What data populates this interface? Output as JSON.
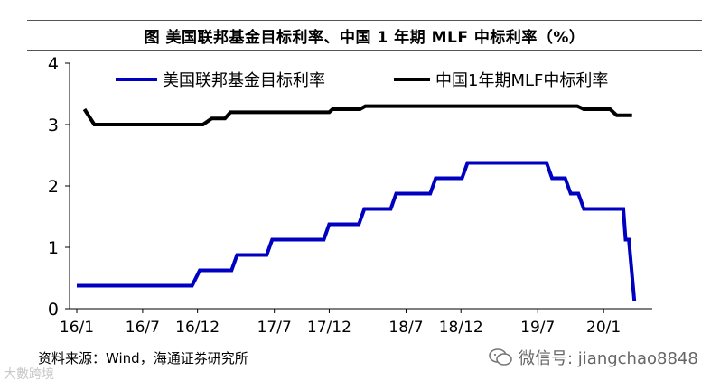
{
  "title": "图 美国联邦基金目标利率、中国 1 年期 MLF 中标利率（%）",
  "source": "资料来源：Wind，海通证券研究所",
  "watermark": {
    "brand": "大數跨境",
    "wechat": "微信号: jiangchao8848"
  },
  "colors": {
    "us_line": "#0000c0",
    "cn_line": "#000000"
  },
  "chart_data": {
    "type": "line",
    "xlabel": "",
    "ylabel": "",
    "ylim": [
      0,
      4
    ],
    "yticks": [
      "0",
      "1",
      "2",
      "3",
      "4"
    ],
    "xticks": [
      "16/1",
      "16/7",
      "16/12",
      "17/7",
      "17/12",
      "18/7",
      "18/12",
      "19/7",
      "20/1"
    ],
    "xtick_months": [
      0,
      6,
      11,
      18,
      23,
      30,
      35,
      42,
      48
    ],
    "xlim_months": [
      0,
      51
    ],
    "legend_position": "top",
    "grid": false,
    "series": [
      {
        "name": "美国联邦基金目标利率",
        "color": "#0000c0",
        "points": [
          [
            0,
            0.375
          ],
          [
            10.5,
            0.375
          ],
          [
            11.2,
            0.625
          ],
          [
            14.1,
            0.625
          ],
          [
            14.6,
            0.875
          ],
          [
            17.3,
            0.875
          ],
          [
            17.8,
            1.125
          ],
          [
            22.5,
            1.125
          ],
          [
            23.0,
            1.375
          ],
          [
            25.7,
            1.375
          ],
          [
            26.2,
            1.625
          ],
          [
            28.6,
            1.625
          ],
          [
            29.1,
            1.875
          ],
          [
            32.2,
            1.875
          ],
          [
            32.7,
            2.125
          ],
          [
            35.1,
            2.125
          ],
          [
            35.6,
            2.375
          ],
          [
            42.8,
            2.375
          ],
          [
            43.3,
            2.125
          ],
          [
            44.5,
            2.125
          ],
          [
            45.0,
            1.875
          ],
          [
            45.7,
            1.875
          ],
          [
            46.2,
            1.625
          ],
          [
            49.8,
            1.625
          ],
          [
            50.0,
            1.125
          ],
          [
            50.3,
            1.125
          ],
          [
            50.8,
            0.125
          ]
        ]
      },
      {
        "name": "中国1年期MLF中标利率",
        "color": "#000000",
        "points": [
          [
            0.7,
            3.25
          ],
          [
            1.6,
            3.0
          ],
          [
            11.5,
            3.0
          ],
          [
            12.3,
            3.1
          ],
          [
            13.5,
            3.1
          ],
          [
            14.0,
            3.2
          ],
          [
            23.0,
            3.2
          ],
          [
            23.3,
            3.25
          ],
          [
            25.8,
            3.25
          ],
          [
            26.3,
            3.3
          ],
          [
            45.6,
            3.3
          ],
          [
            46.2,
            3.25
          ],
          [
            48.6,
            3.25
          ],
          [
            49.2,
            3.15
          ],
          [
            50.6,
            3.15
          ]
        ]
      }
    ]
  }
}
